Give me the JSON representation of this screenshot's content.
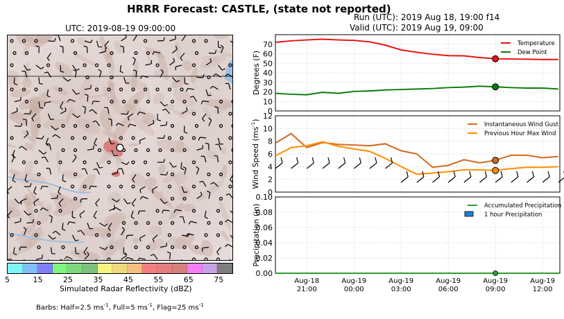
{
  "header": {
    "suptitle": "HRRR Forecast: CASTLE, (state not reported)",
    "run": "Run (UTC): 2019 Aug 18, 19:00 f14",
    "valid": "Valid (UTC): 2019 Aug 19, 09:00"
  },
  "map": {
    "title": "UTC: 2019-08-19 09:00:00",
    "colorbar_label": "Simulated Radar Reflectivity (dBZ)",
    "colorbar_ticks": [
      "5",
      "15",
      "25",
      "35",
      "45",
      "55",
      "65",
      "75"
    ],
    "colorbar_colors": [
      "#7ff5f5",
      "#7fbff5",
      "#8080f5",
      "#7ff57f",
      "#7fd87f",
      "#7fbf7f",
      "#f5f57f",
      "#f0d880",
      "#f5bf7f",
      "#f57f7f",
      "#e57f7f",
      "#d87f7f",
      "#f57ff5",
      "#c8a2e6",
      "#7f7f7f"
    ],
    "barb_note_prefix": "Barbs: Half=2.5 ms",
    "barb_note_mid1": ", Full=5 ms",
    "barb_note_mid2": ", Flag=25 ms",
    "barb_note_sup": "-1"
  },
  "chart_data": [
    {
      "type": "line",
      "ylabel": "Degrees (F)",
      "ylim": [
        0,
        80
      ],
      "yticks": [
        "0",
        "10",
        "20",
        "30",
        "40",
        "50",
        "60",
        "70"
      ],
      "grid": true,
      "legend_position": "top-right",
      "x": [
        "2019-08-18 19:00",
        "2019-08-18 20:00",
        "2019-08-18 21:00",
        "2019-08-18 22:00",
        "2019-08-18 23:00",
        "2019-08-19 00:00",
        "2019-08-19 01:00",
        "2019-08-19 02:00",
        "2019-08-19 03:00",
        "2019-08-19 04:00",
        "2019-08-19 05:00",
        "2019-08-19 06:00",
        "2019-08-19 07:00",
        "2019-08-19 08:00",
        "2019-08-19 09:00",
        "2019-08-19 10:00",
        "2019-08-19 11:00",
        "2019-08-19 12:00",
        "2019-08-19 13:00"
      ],
      "series": [
        {
          "name": "Temperature",
          "color": "#e8130f",
          "values": [
            72,
            73.5,
            74.5,
            75.3,
            74.5,
            74,
            72.5,
            69,
            64,
            61.5,
            59.5,
            58,
            57.8,
            56,
            54.7,
            54.5,
            54.3,
            53.9,
            54
          ]
        },
        {
          "name": "Dew Point",
          "color": "#0a7d0a",
          "values": [
            18.5,
            17.5,
            17,
            19.5,
            18.5,
            20.5,
            21,
            22,
            22.5,
            23,
            23.5,
            24.5,
            25,
            26,
            25.3,
            24.5,
            24,
            24,
            23
          ]
        }
      ],
      "marker": {
        "x": "2019-08-19 09:00",
        "values": [
          54.7,
          25.3
        ]
      }
    },
    {
      "type": "line",
      "ylabel": "Wind Speed (ms",
      "ylabel_sup": "-1",
      "ylim": [
        0,
        12
      ],
      "yticks": [
        "0",
        "2",
        "4",
        "6",
        "8",
        "10",
        "12"
      ],
      "grid": true,
      "legend_position": "top-right",
      "series": [
        {
          "name": "Instantaneous Wind Gust",
          "color": "#d2691e",
          "values": [
            7.7,
            9.2,
            7,
            7.8,
            7.5,
            7.4,
            7.3,
            7.6,
            6.5,
            6,
            3.9,
            4.2,
            5.1,
            4.6,
            5,
            5.8,
            5.8,
            5.4,
            5.6
          ]
        },
        {
          "name": "Previous Hour Max Wind",
          "color": "#ff8c00",
          "values": [
            5.7,
            7,
            7.3,
            7.9,
            7.2,
            6.8,
            6.4,
            5.3,
            4,
            2.8,
            3,
            3.2,
            3.5,
            3.5,
            3.4,
            3.7,
            3.9,
            3.9,
            4
          ]
        }
      ],
      "marker": {
        "x": "2019-08-19 09:00",
        "values": [
          5,
          3.4
        ]
      }
    },
    {
      "type": "line",
      "ylabel": "Precipitation (in)",
      "ylim": [
        0,
        0.1
      ],
      "yticks": [
        "0.00",
        "0.02",
        "0.04",
        "0.06",
        "0.08",
        "0.10"
      ],
      "grid": true,
      "legend_position": "top-right",
      "series": [
        {
          "name": "Accumulated Precipitation",
          "color": "#2ca02c",
          "values": [
            0,
            0,
            0,
            0,
            0,
            0,
            0,
            0,
            0,
            0,
            0,
            0,
            0,
            0,
            0,
            0,
            0,
            0,
            0
          ]
        },
        {
          "name": "1 hour Precipitation",
          "color": "#1e7fd8",
          "values": [
            0,
            0,
            0,
            0,
            0,
            0,
            0,
            0,
            0,
            0,
            0,
            0,
            0,
            0,
            0,
            0,
            0,
            0,
            0
          ]
        }
      ],
      "xtick_labels": [
        [
          "Aug-18",
          "21:00"
        ],
        [
          "Aug-19",
          "00:00"
        ],
        [
          "Aug-19",
          "03:00"
        ],
        [
          "Aug-19",
          "06:00"
        ],
        [
          "Aug-19",
          "09:00"
        ],
        [
          "Aug-19",
          "12:00"
        ]
      ]
    }
  ]
}
